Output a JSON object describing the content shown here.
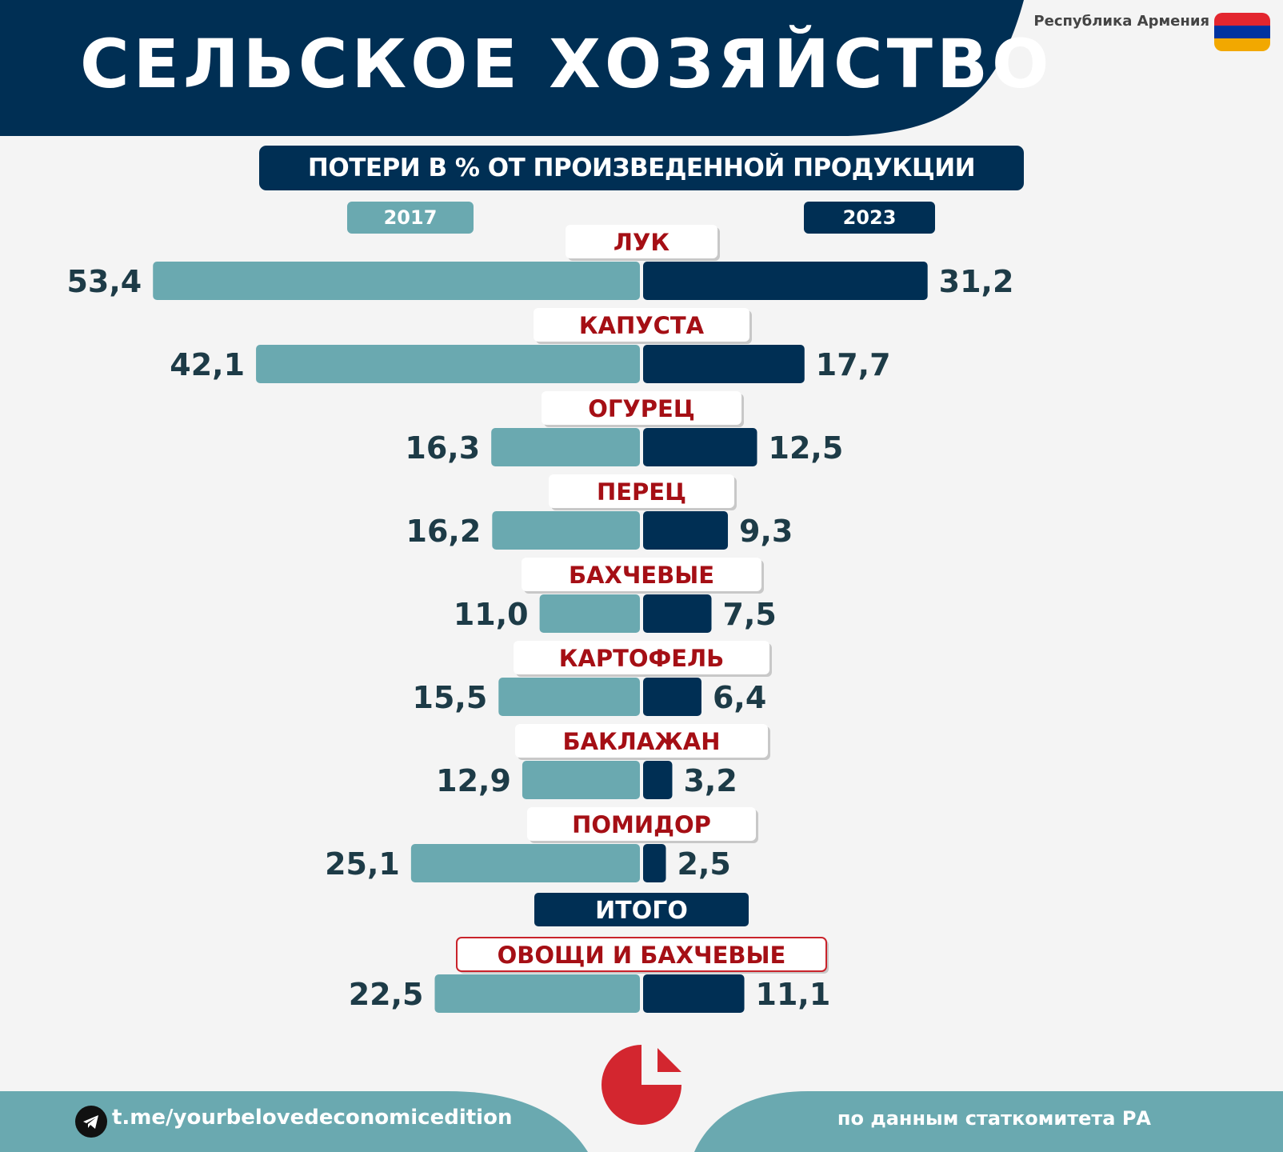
{
  "header": {
    "title": "СЕЛЬСКОЕ ХОЗЯЙСТВО",
    "country": "Республика Армения",
    "flag_colors": [
      "#e3262f",
      "#0033a0",
      "#f2a800"
    ]
  },
  "subtitle": "ПОТЕРИ В % ОТ ПРОИЗВЕДЕННОЙ ПРОДУКЦИИ",
  "colors": {
    "navy": "#002f54",
    "teal": "#6aa9b0",
    "label_red": "#a50f15",
    "value_text": "#1d3b47"
  },
  "chart_data": {
    "type": "bar",
    "orientation": "horizontal-diverging",
    "series": [
      {
        "name": "2017",
        "values": [
          53.4,
          42.1,
          16.3,
          16.2,
          11.0,
          15.5,
          12.9,
          25.1,
          22.5
        ]
      },
      {
        "name": "2023",
        "values": [
          31.2,
          17.7,
          12.5,
          9.3,
          7.5,
          6.4,
          3.2,
          2.5,
          11.1
        ]
      }
    ],
    "categories": [
      "ЛУК",
      "КАПУСТА",
      "ОГУРЕЦ",
      "ПЕРЕЦ",
      "БАХЧЕВЫЕ",
      "КАРТОФЕЛЬ",
      "БАКЛАЖАН",
      "ПОМИДОР",
      "ОВОЩИ И БАХЧЕВЫЕ"
    ],
    "left_labels": [
      "53,4",
      "42,1",
      "16,3",
      "16,2",
      "11,0",
      "15,5",
      "12,9",
      "25,1",
      "22,5"
    ],
    "right_labels": [
      "31,2",
      "17,7",
      "12,5",
      "9,3",
      "7,5",
      "6,4",
      "3,2",
      "2,5",
      "11,1"
    ],
    "total_header": "ИТОГО",
    "unit": "%"
  },
  "footer": {
    "telegram_url": "t.me/yourbelovedeconomicedition",
    "source": "по данным статкомитета РА",
    "icons": [
      "telegram-icon",
      "brand-logo-icon"
    ]
  }
}
